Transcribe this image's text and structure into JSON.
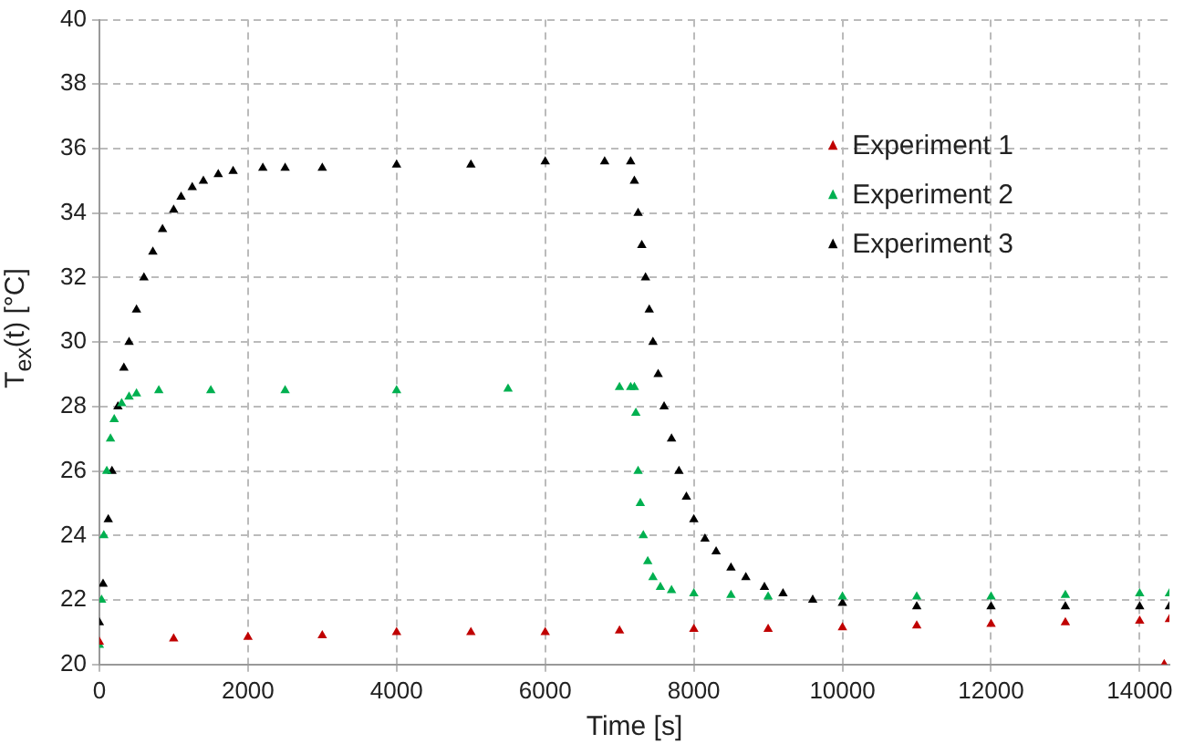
{
  "chart_data": {
    "type": "scatter",
    "xlabel": "Time [s]",
    "ylabel": "T$_{ex}$(t) [°C]",
    "xlim": [
      0,
      14400
    ],
    "xticks": [
      0,
      2000,
      4000,
      6000,
      8000,
      10000,
      12000,
      14000
    ],
    "ylim": [
      20,
      40
    ],
    "yticks": [
      20,
      22,
      24,
      26,
      28,
      30,
      32,
      34,
      36,
      38,
      40
    ],
    "grid": true,
    "legend": "right",
    "marker": "triangle",
    "series": [
      {
        "name": "Experiment 1",
        "color": "#c00000",
        "x": [
          0,
          1000,
          2000,
          3000,
          4000,
          5000,
          6000,
          7000,
          8000,
          9000,
          10000,
          11000,
          12000,
          13000,
          14000,
          14400,
          14330
        ],
        "values": [
          20.7,
          20.8,
          20.85,
          20.9,
          21.0,
          21.0,
          21.0,
          21.05,
          21.1,
          21.1,
          21.15,
          21.2,
          21.25,
          21.3,
          21.35,
          21.4,
          20.0
        ]
      },
      {
        "name": "Experiment 2",
        "color": "#00b050",
        "x": [
          0,
          30,
          60,
          100,
          150,
          200,
          300,
          400,
          500,
          800,
          1500,
          2500,
          4000,
          5500,
          7000,
          7150,
          7200,
          7220,
          7250,
          7280,
          7320,
          7380,
          7450,
          7550,
          7700,
          8000,
          8500,
          9000,
          10000,
          11000,
          12000,
          13000,
          14000,
          14400
        ],
        "values": [
          20.6,
          22.0,
          24.0,
          26.0,
          27.0,
          27.6,
          28.1,
          28.3,
          28.4,
          28.5,
          28.5,
          28.5,
          28.5,
          28.55,
          28.6,
          28.6,
          28.6,
          27.8,
          26.0,
          25.0,
          24.0,
          23.2,
          22.7,
          22.4,
          22.3,
          22.2,
          22.15,
          22.1,
          22.1,
          22.1,
          22.1,
          22.15,
          22.2,
          22.2
        ]
      },
      {
        "name": "Experiment 3",
        "color": "#000000",
        "x": [
          0,
          50,
          120,
          170,
          250,
          330,
          400,
          500,
          600,
          720,
          850,
          1000,
          1100,
          1250,
          1400,
          1600,
          1800,
          2200,
          2500,
          3000,
          4000,
          5000,
          6000,
          6800,
          7150,
          7200,
          7250,
          7300,
          7350,
          7400,
          7450,
          7520,
          7600,
          7700,
          7800,
          7900,
          8000,
          8150,
          8300,
          8500,
          8700,
          8950,
          9200,
          9600,
          10000,
          11000,
          12000,
          13000,
          14000,
          14400
        ],
        "values": [
          21.3,
          22.5,
          24.5,
          26.0,
          28.0,
          29.2,
          30.0,
          31.0,
          32.0,
          32.8,
          33.5,
          34.1,
          34.5,
          34.8,
          35.0,
          35.2,
          35.3,
          35.4,
          35.4,
          35.4,
          35.5,
          35.5,
          35.6,
          35.6,
          35.6,
          35.0,
          34.0,
          33.0,
          32.0,
          31.0,
          30.0,
          29.0,
          28.0,
          27.0,
          26.0,
          25.2,
          24.5,
          23.9,
          23.5,
          23.0,
          22.7,
          22.4,
          22.2,
          22.0,
          21.9,
          21.8,
          21.8,
          21.8,
          21.8,
          21.8
        ]
      }
    ]
  }
}
